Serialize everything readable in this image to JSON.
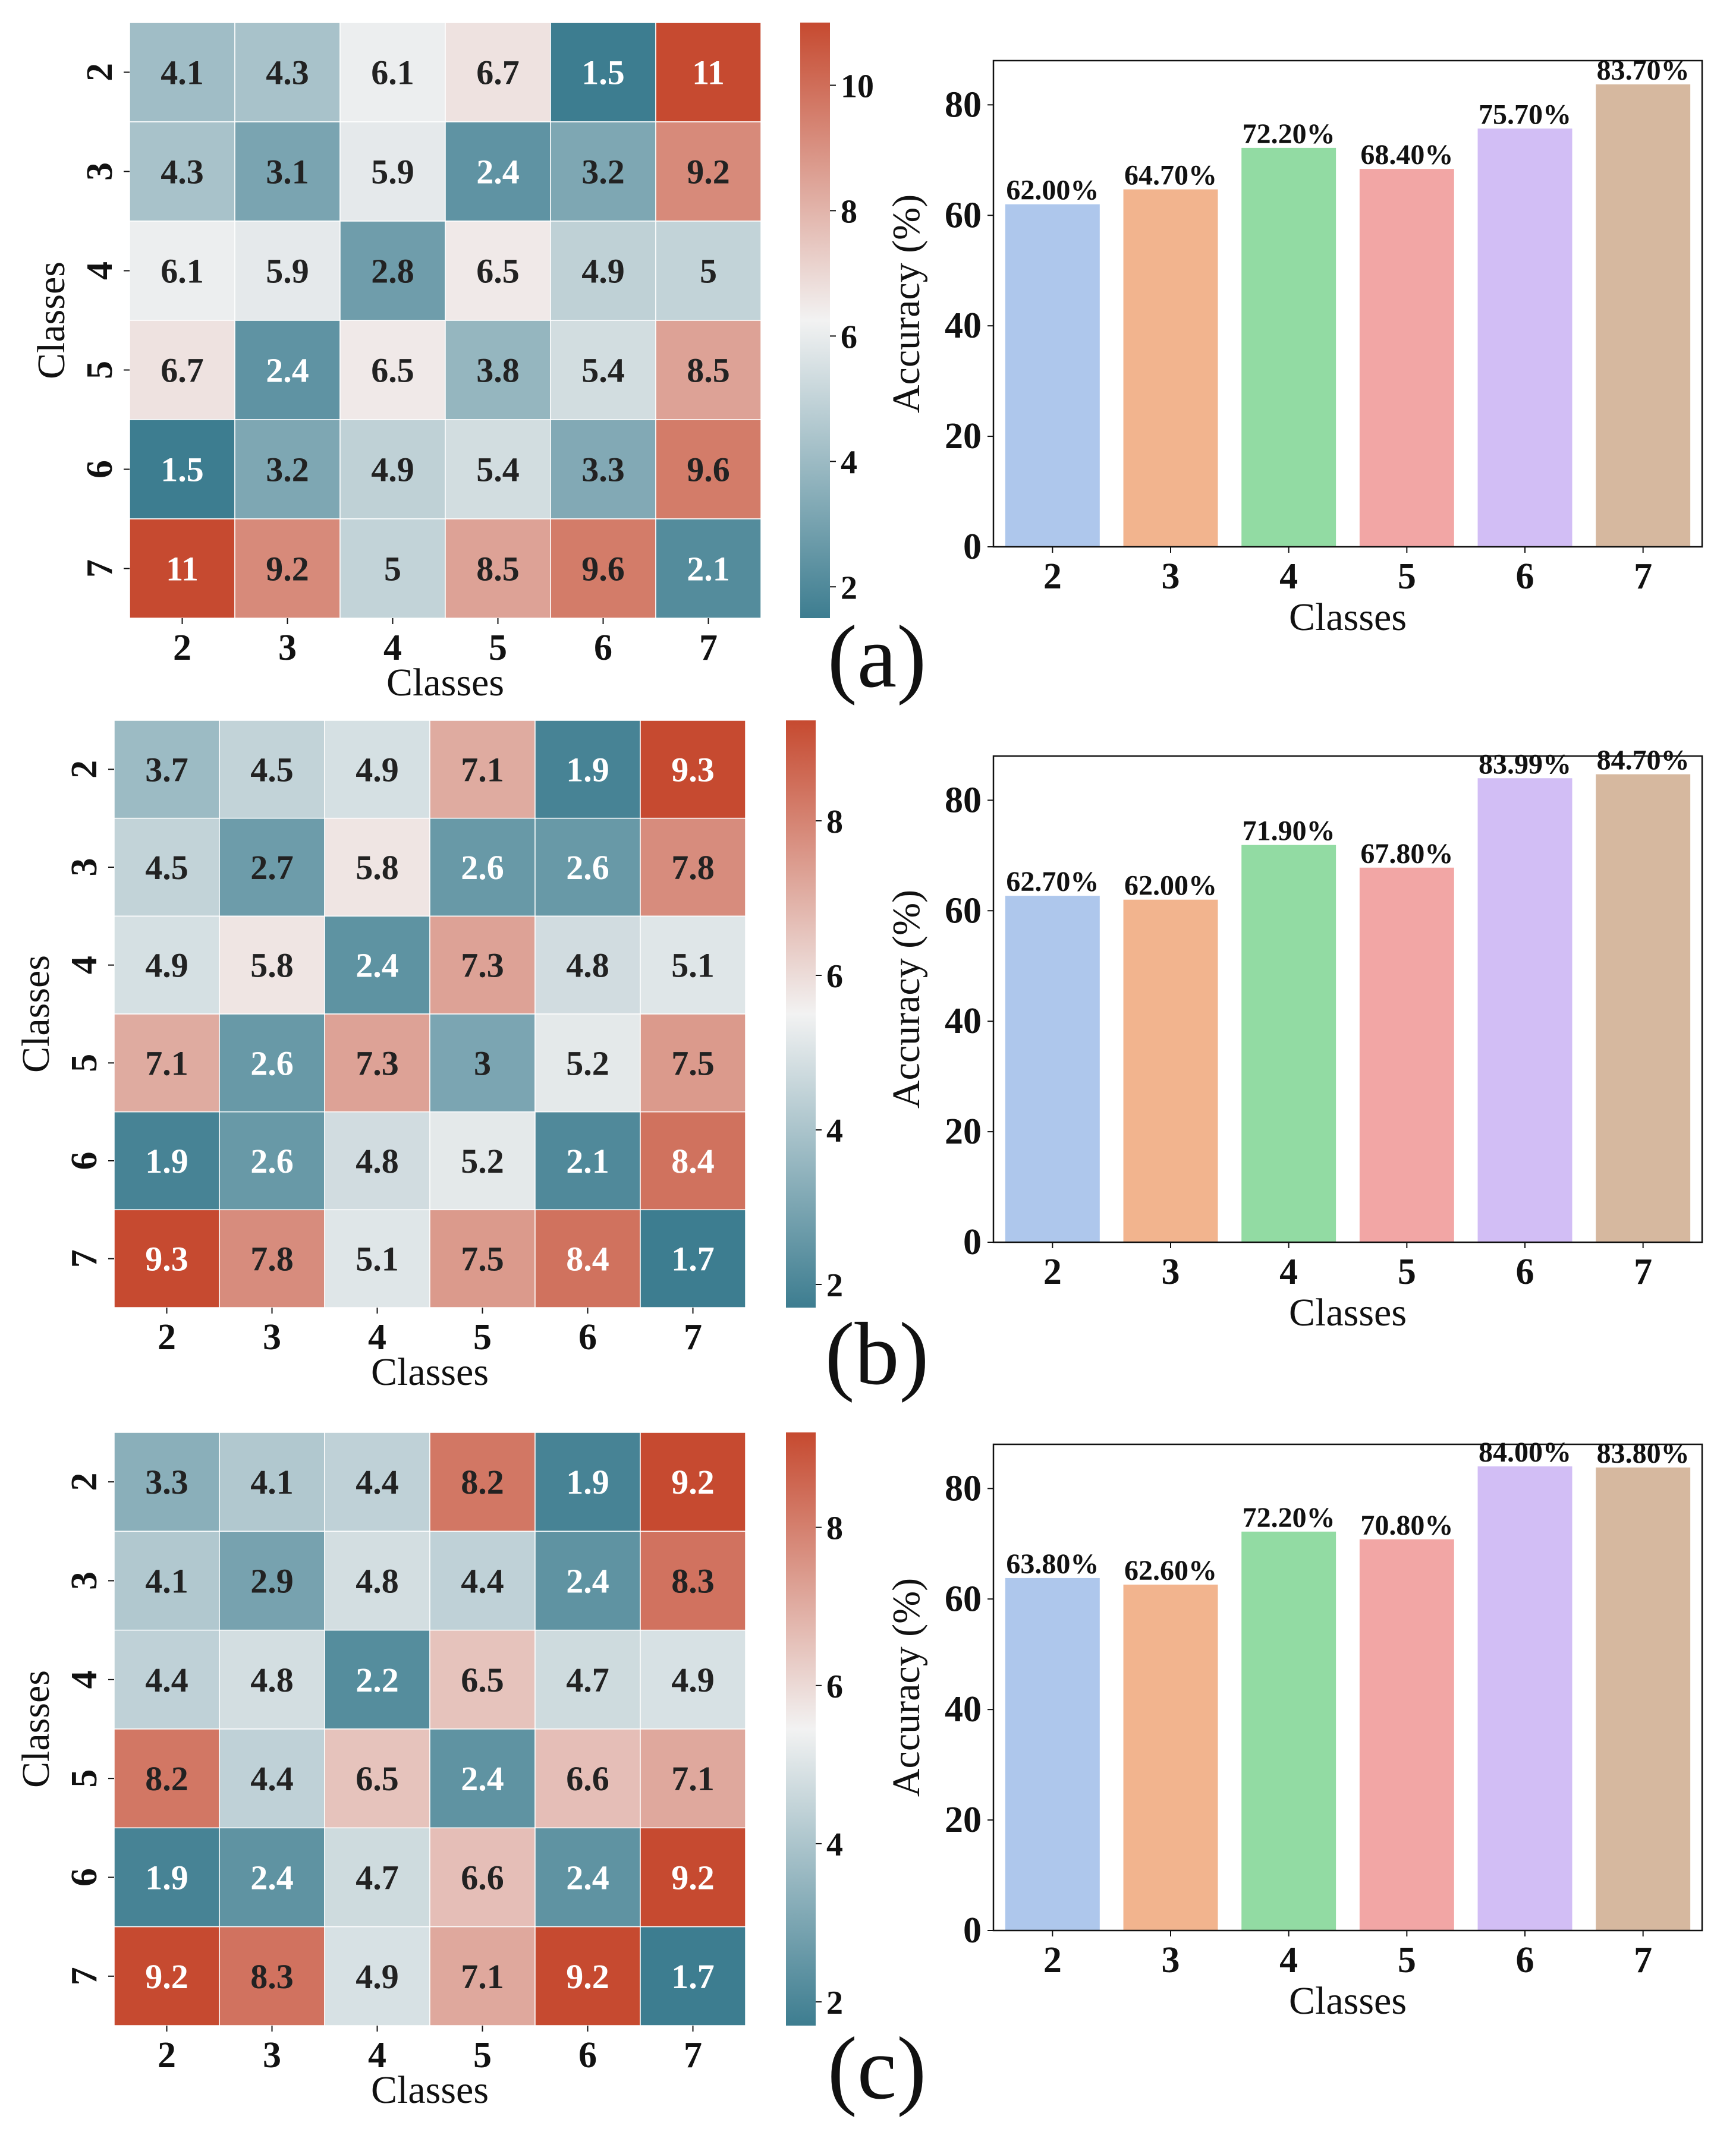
{
  "figure": {
    "panels": [
      {
        "panel_label": "(a)",
        "heatmap": {
          "xlabel": "Classes",
          "ylabel": "Classes",
          "categories": [
            "2",
            "3",
            "4",
            "5",
            "6",
            "7"
          ],
          "values": [
            [
              4.1,
              4.3,
              6.1,
              6.7,
              1.5,
              11
            ],
            [
              4.3,
              3.1,
              5.9,
              2.4,
              3.2,
              9.2
            ],
            [
              6.1,
              5.9,
              2.8,
              6.5,
              4.9,
              5
            ],
            [
              6.7,
              2.4,
              6.5,
              3.8,
              5.4,
              8.5
            ],
            [
              1.5,
              3.2,
              4.9,
              5.4,
              3.3,
              9.6
            ],
            [
              11,
              9.2,
              5,
              8.5,
              9.6,
              2.1
            ]
          ],
          "colorbar_ticks": [
            "2",
            "4",
            "6",
            "8",
            "10"
          ],
          "colorbar_tick_values": [
            2,
            4,
            6,
            8,
            10
          ],
          "vmin": 1.5,
          "vmax": 11
        },
        "bar": {
          "xlabel": "Classes",
          "ylabel": "Accuracy (%)",
          "categories": [
            "2",
            "3",
            "4",
            "5",
            "6",
            "7"
          ],
          "values": [
            62.0,
            64.7,
            72.2,
            68.4,
            75.7,
            83.7
          ],
          "labels": [
            "62.00%",
            "64.70%",
            "72.20%",
            "68.40%",
            "75.70%",
            "83.70%"
          ],
          "yticks": [
            "0",
            "20",
            "40",
            "60",
            "80"
          ],
          "ylim": [
            0,
            88
          ]
        }
      },
      {
        "panel_label": "(b)",
        "heatmap": {
          "xlabel": "Classes",
          "ylabel": "Classes",
          "categories": [
            "2",
            "3",
            "4",
            "5",
            "6",
            "7"
          ],
          "values": [
            [
              3.7,
              4.5,
              4.9,
              7.1,
              1.9,
              9.3
            ],
            [
              4.5,
              2.7,
              5.8,
              2.6,
              2.6,
              7.8
            ],
            [
              4.9,
              5.8,
              2.4,
              7.3,
              4.8,
              5.1
            ],
            [
              7.1,
              2.6,
              7.3,
              3,
              5.2,
              7.5
            ],
            [
              1.9,
              2.6,
              4.8,
              5.2,
              2.1,
              8.4
            ],
            [
              9.3,
              7.8,
              5.1,
              7.5,
              8.4,
              1.7
            ]
          ],
          "colorbar_ticks": [
            "2",
            "4",
            "6",
            "8"
          ],
          "colorbar_tick_values": [
            2,
            4,
            6,
            8
          ],
          "vmin": 1.7,
          "vmax": 9.3
        },
        "bar": {
          "xlabel": "Classes",
          "ylabel": "Accuracy (%)",
          "categories": [
            "2",
            "3",
            "4",
            "5",
            "6",
            "7"
          ],
          "values": [
            62.7,
            62.0,
            71.9,
            67.8,
            83.99,
            84.7
          ],
          "labels": [
            "62.70%",
            "62.00%",
            "71.90%",
            "67.80%",
            "83.99%",
            "84.70%"
          ],
          "yticks": [
            "0",
            "20",
            "40",
            "60",
            "80"
          ],
          "ylim": [
            0,
            88
          ]
        }
      },
      {
        "panel_label": "(c)",
        "heatmap": {
          "xlabel": "Classes",
          "ylabel": "Classes",
          "categories": [
            "2",
            "3",
            "4",
            "5",
            "6",
            "7"
          ],
          "values": [
            [
              3.3,
              4.1,
              4.4,
              8.2,
              1.9,
              9.2
            ],
            [
              4.1,
              2.9,
              4.8,
              4.4,
              2.4,
              8.3
            ],
            [
              4.4,
              4.8,
              2.2,
              6.5,
              4.7,
              4.9
            ],
            [
              8.2,
              4.4,
              6.5,
              2.4,
              6.6,
              7.1
            ],
            [
              1.9,
              2.4,
              4.7,
              6.6,
              2.4,
              9.2
            ],
            [
              9.2,
              8.3,
              4.9,
              7.1,
              9.2,
              1.7
            ]
          ],
          "colorbar_ticks": [
            "2",
            "4",
            "6",
            "8"
          ],
          "colorbar_tick_values": [
            2,
            4,
            6,
            8
          ],
          "vmin": 1.7,
          "vmax": 9.2
        },
        "bar": {
          "xlabel": "Classes",
          "ylabel": "Accuracy (%)",
          "categories": [
            "2",
            "3",
            "4",
            "5",
            "6",
            "7"
          ],
          "values": [
            63.8,
            62.6,
            72.2,
            70.8,
            84.0,
            83.8
          ],
          "labels": [
            "63.80%",
            "62.60%",
            "72.20%",
            "70.80%",
            "84.00%",
            "83.80%"
          ],
          "yticks": [
            "0",
            "20",
            "40",
            "60",
            "80"
          ],
          "ylim": [
            0,
            88
          ]
        }
      }
    ]
  },
  "colors": {
    "heat_low": "#3d7d90",
    "heat_mid": "#f2f2f2",
    "heat_high": "#c64a30",
    "bars": [
      "#aec7ec",
      "#f2b48e",
      "#92dba3",
      "#f2a6a5",
      "#d2bef5",
      "#d6b89f"
    ]
  },
  "chart_data": [
    {
      "type": "heatmap",
      "title": "(a)",
      "xlabel": "Classes",
      "ylabel": "Classes",
      "x": [
        "2",
        "3",
        "4",
        "5",
        "6",
        "7"
      ],
      "y": [
        "2",
        "3",
        "4",
        "5",
        "6",
        "7"
      ],
      "values": [
        [
          4.1,
          4.3,
          6.1,
          6.7,
          1.5,
          11
        ],
        [
          4.3,
          3.1,
          5.9,
          2.4,
          3.2,
          9.2
        ],
        [
          6.1,
          5.9,
          2.8,
          6.5,
          4.9,
          5
        ],
        [
          6.7,
          2.4,
          6.5,
          3.8,
          5.4,
          8.5
        ],
        [
          1.5,
          3.2,
          4.9,
          5.4,
          3.3,
          9.6
        ],
        [
          11,
          9.2,
          5,
          8.5,
          9.6,
          2.1
        ]
      ]
    },
    {
      "type": "bar",
      "title": "(a)",
      "xlabel": "Classes",
      "ylabel": "Accuracy (%)",
      "categories": [
        "2",
        "3",
        "4",
        "5",
        "6",
        "7"
      ],
      "values": [
        62.0,
        64.7,
        72.2,
        68.4,
        75.7,
        83.7
      ],
      "ylim": [
        0,
        88
      ]
    },
    {
      "type": "heatmap",
      "title": "(b)",
      "xlabel": "Classes",
      "ylabel": "Classes",
      "x": [
        "2",
        "3",
        "4",
        "5",
        "6",
        "7"
      ],
      "y": [
        "2",
        "3",
        "4",
        "5",
        "6",
        "7"
      ],
      "values": [
        [
          3.7,
          4.5,
          4.9,
          7.1,
          1.9,
          9.3
        ],
        [
          4.5,
          2.7,
          5.8,
          2.6,
          2.6,
          7.8
        ],
        [
          4.9,
          5.8,
          2.4,
          7.3,
          4.8,
          5.1
        ],
        [
          7.1,
          2.6,
          7.3,
          3,
          5.2,
          7.5
        ],
        [
          1.9,
          2.6,
          4.8,
          5.2,
          2.1,
          8.4
        ],
        [
          9.3,
          7.8,
          5.1,
          7.5,
          8.4,
          1.7
        ]
      ]
    },
    {
      "type": "bar",
      "title": "(b)",
      "xlabel": "Classes",
      "ylabel": "Accuracy (%)",
      "categories": [
        "2",
        "3",
        "4",
        "5",
        "6",
        "7"
      ],
      "values": [
        62.7,
        62.0,
        71.9,
        67.8,
        83.99,
        84.7
      ],
      "ylim": [
        0,
        88
      ]
    },
    {
      "type": "heatmap",
      "title": "(c)",
      "xlabel": "Classes",
      "ylabel": "Classes",
      "x": [
        "2",
        "3",
        "4",
        "5",
        "6",
        "7"
      ],
      "y": [
        "2",
        "3",
        "4",
        "5",
        "6",
        "7"
      ],
      "values": [
        [
          3.3,
          4.1,
          4.4,
          8.2,
          1.9,
          9.2
        ],
        [
          4.1,
          2.9,
          4.8,
          4.4,
          2.4,
          8.3
        ],
        [
          4.4,
          4.8,
          2.2,
          6.5,
          4.7,
          4.9
        ],
        [
          8.2,
          4.4,
          6.5,
          2.4,
          6.6,
          7.1
        ],
        [
          1.9,
          2.4,
          4.7,
          6.6,
          2.4,
          9.2
        ],
        [
          9.2,
          8.3,
          4.9,
          7.1,
          9.2,
          1.7
        ]
      ]
    },
    {
      "type": "bar",
      "title": "(c)",
      "xlabel": "Classes",
      "ylabel": "Accuracy (%)",
      "categories": [
        "2",
        "3",
        "4",
        "5",
        "6",
        "7"
      ],
      "values": [
        63.8,
        62.6,
        72.2,
        70.8,
        84.0,
        83.8
      ],
      "ylim": [
        0,
        88
      ]
    }
  ]
}
